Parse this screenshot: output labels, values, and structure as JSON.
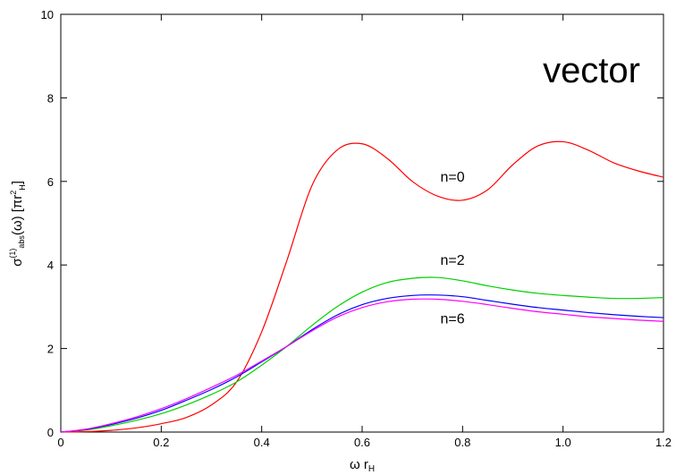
{
  "chart_data": {
    "type": "line",
    "title": "vector",
    "xlabel_main": "ω r",
    "xlabel_sub": "H",
    "ylabel": "σ(1)abs(ω) [πr2H]",
    "xlim": [
      0,
      1.2
    ],
    "ylim": [
      0,
      10
    ],
    "x_ticks": [
      0,
      0.2,
      0.4,
      0.6,
      0.8,
      1.0,
      1.2
    ],
    "x_tick_labels": [
      "0",
      "0.2",
      "0.4",
      "0.6",
      "0.8",
      "1.0",
      "1.2"
    ],
    "y_ticks": [
      0,
      2,
      4,
      6,
      8,
      10
    ],
    "y_tick_labels": [
      "0",
      "2",
      "4",
      "6",
      "8",
      "10"
    ],
    "grid": false,
    "series": [
      {
        "name": "n=0",
        "color": "#ff0000",
        "x": [
          0,
          0.05,
          0.1,
          0.15,
          0.2,
          0.25,
          0.3,
          0.35,
          0.4,
          0.45,
          0.5,
          0.55,
          0.6,
          0.65,
          0.7,
          0.75,
          0.8,
          0.85,
          0.9,
          0.95,
          1.0,
          1.05,
          1.1,
          1.15,
          1.2
        ],
        "y": [
          0,
          0.01,
          0.04,
          0.1,
          0.2,
          0.35,
          0.65,
          1.2,
          2.4,
          4.1,
          5.9,
          6.75,
          6.9,
          6.55,
          6.0,
          5.65,
          5.55,
          5.8,
          6.4,
          6.85,
          6.95,
          6.75,
          6.45,
          6.25,
          6.1
        ]
      },
      {
        "name": "n=2",
        "color": "#00d000",
        "x": [
          0,
          0.05,
          0.1,
          0.15,
          0.2,
          0.25,
          0.3,
          0.35,
          0.4,
          0.45,
          0.5,
          0.55,
          0.6,
          0.65,
          0.7,
          0.75,
          0.8,
          0.85,
          0.9,
          0.95,
          1.0,
          1.05,
          1.1,
          1.15,
          1.2
        ],
        "y": [
          0,
          0.05,
          0.15,
          0.28,
          0.44,
          0.65,
          0.9,
          1.2,
          1.6,
          2.05,
          2.55,
          3.0,
          3.35,
          3.58,
          3.68,
          3.7,
          3.62,
          3.5,
          3.4,
          3.32,
          3.27,
          3.23,
          3.2,
          3.2,
          3.22
        ]
      },
      {
        "name": "",
        "color": "#0000ff",
        "x": [
          0,
          0.05,
          0.1,
          0.15,
          0.2,
          0.25,
          0.3,
          0.35,
          0.4,
          0.45,
          0.5,
          0.55,
          0.6,
          0.65,
          0.7,
          0.75,
          0.8,
          0.85,
          0.9,
          0.95,
          1.0,
          1.05,
          1.1,
          1.15,
          1.2
        ],
        "y": [
          0,
          0.06,
          0.18,
          0.33,
          0.52,
          0.76,
          1.02,
          1.32,
          1.68,
          2.05,
          2.45,
          2.8,
          3.05,
          3.2,
          3.27,
          3.28,
          3.24,
          3.15,
          3.06,
          2.98,
          2.92,
          2.86,
          2.81,
          2.77,
          2.74
        ]
      },
      {
        "name": "n=6",
        "color": "#ff00ff",
        "x": [
          0,
          0.05,
          0.1,
          0.15,
          0.2,
          0.25,
          0.3,
          0.35,
          0.4,
          0.45,
          0.5,
          0.55,
          0.6,
          0.65,
          0.7,
          0.75,
          0.8,
          0.85,
          0.9,
          0.95,
          1.0,
          1.05,
          1.1,
          1.15,
          1.2
        ],
        "y": [
          0,
          0.07,
          0.2,
          0.36,
          0.56,
          0.8,
          1.07,
          1.36,
          1.7,
          2.05,
          2.42,
          2.75,
          2.98,
          3.12,
          3.18,
          3.18,
          3.13,
          3.05,
          2.96,
          2.88,
          2.82,
          2.76,
          2.72,
          2.68,
          2.65
        ]
      }
    ],
    "curve_labels": [
      {
        "text": "n=0",
        "x": 0.78,
        "y": 6.0
      },
      {
        "text": "n=2",
        "x": 0.78,
        "y": 4.0
      },
      {
        "text": "n=6",
        "x": 0.78,
        "y": 2.6
      }
    ]
  }
}
